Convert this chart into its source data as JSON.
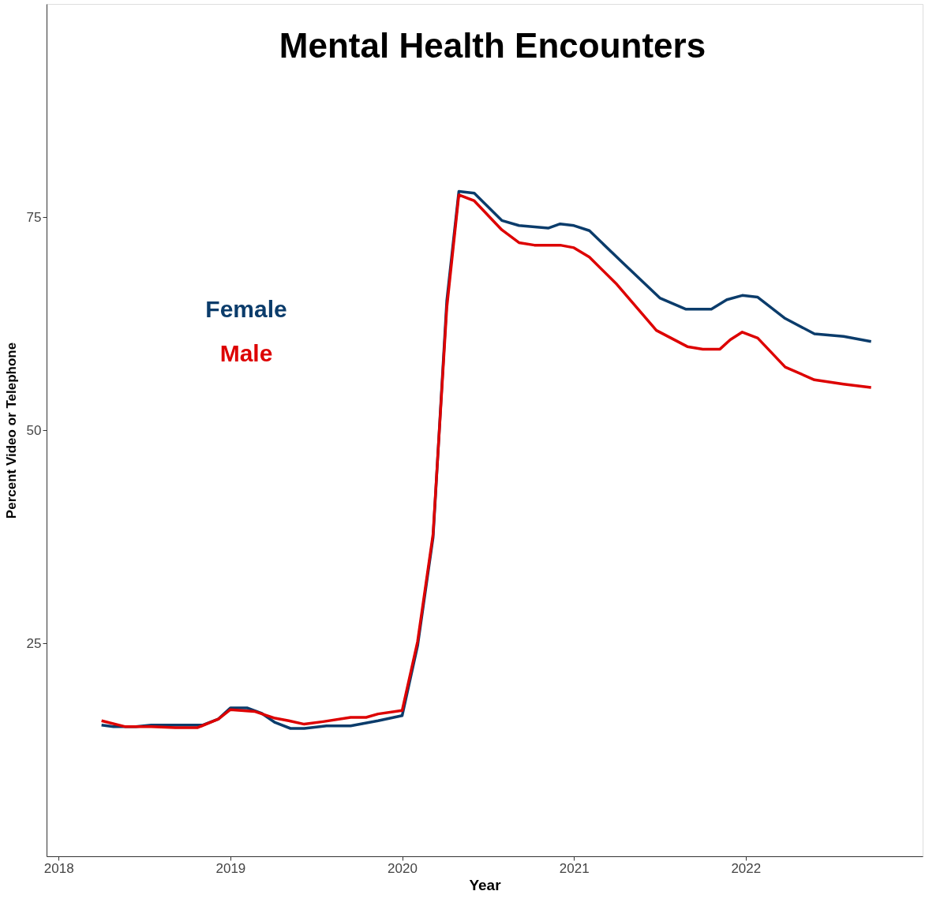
{
  "chart_data": {
    "type": "line",
    "title": "Mental Health Encounters",
    "xlabel": "Year",
    "ylabel": "Percent Video or Telephone",
    "xlim": [
      2017.93,
      2023.03
    ],
    "xticks": [
      2018,
      2019,
      2020,
      2021,
      2022
    ],
    "ylim": [
      0,
      100
    ],
    "yticks": [
      25,
      50,
      75
    ],
    "grid": false,
    "legend": false,
    "series": [
      {
        "name": "Female",
        "color": "#0b3c6b",
        "x": [
          2018.25,
          2018.32,
          2018.45,
          2018.54,
          2018.84,
          2018.93,
          2019.0,
          2019.1,
          2019.18,
          2019.26,
          2019.35,
          2019.43,
          2019.56,
          2019.7,
          2019.86,
          2020.0,
          2020.09,
          2020.18,
          2020.26,
          2020.33,
          2020.42,
          2020.5,
          2020.58,
          2020.68,
          2020.85,
          2020.92,
          2021.0,
          2021.09,
          2021.27,
          2021.5,
          2021.65,
          2021.8,
          2021.89,
          2021.98,
          2022.07,
          2022.23,
          2022.4,
          2022.57,
          2022.73
        ],
        "values": [
          15.4,
          15.2,
          15.2,
          15.4,
          15.4,
          16.1,
          17.4,
          17.4,
          16.8,
          15.7,
          15.0,
          15.0,
          15.3,
          15.3,
          15.9,
          16.5,
          24.7,
          37.4,
          65.2,
          78.0,
          77.8,
          76.2,
          74.6,
          74.0,
          73.7,
          74.2,
          74.0,
          73.4,
          69.9,
          65.5,
          64.2,
          64.2,
          65.3,
          65.8,
          65.6,
          63.1,
          61.3,
          61.0,
          60.4
        ]
      },
      {
        "name": "Male",
        "color": "#dd0000",
        "x": [
          2018.25,
          2018.39,
          2018.54,
          2018.68,
          2018.81,
          2018.93,
          2019.0,
          2019.14,
          2019.26,
          2019.34,
          2019.43,
          2019.54,
          2019.7,
          2019.79,
          2019.86,
          2020.0,
          2020.09,
          2020.18,
          2020.26,
          2020.33,
          2020.42,
          2020.58,
          2020.68,
          2020.77,
          2020.92,
          2021.0,
          2021.09,
          2021.25,
          2021.48,
          2021.66,
          2021.75,
          2021.85,
          2021.91,
          2021.98,
          2022.07,
          2022.23,
          2022.4,
          2022.57,
          2022.73
        ],
        "values": [
          15.9,
          15.2,
          15.2,
          15.1,
          15.1,
          16.1,
          17.2,
          17.0,
          16.2,
          15.9,
          15.5,
          15.8,
          16.3,
          16.3,
          16.7,
          17.1,
          25.2,
          37.8,
          64.4,
          77.6,
          76.9,
          73.5,
          72.0,
          71.7,
          71.7,
          71.4,
          70.3,
          67.1,
          61.7,
          59.8,
          59.5,
          59.5,
          60.6,
          61.5,
          60.8,
          57.4,
          55.9,
          55.4,
          55.0
        ]
      }
    ]
  }
}
